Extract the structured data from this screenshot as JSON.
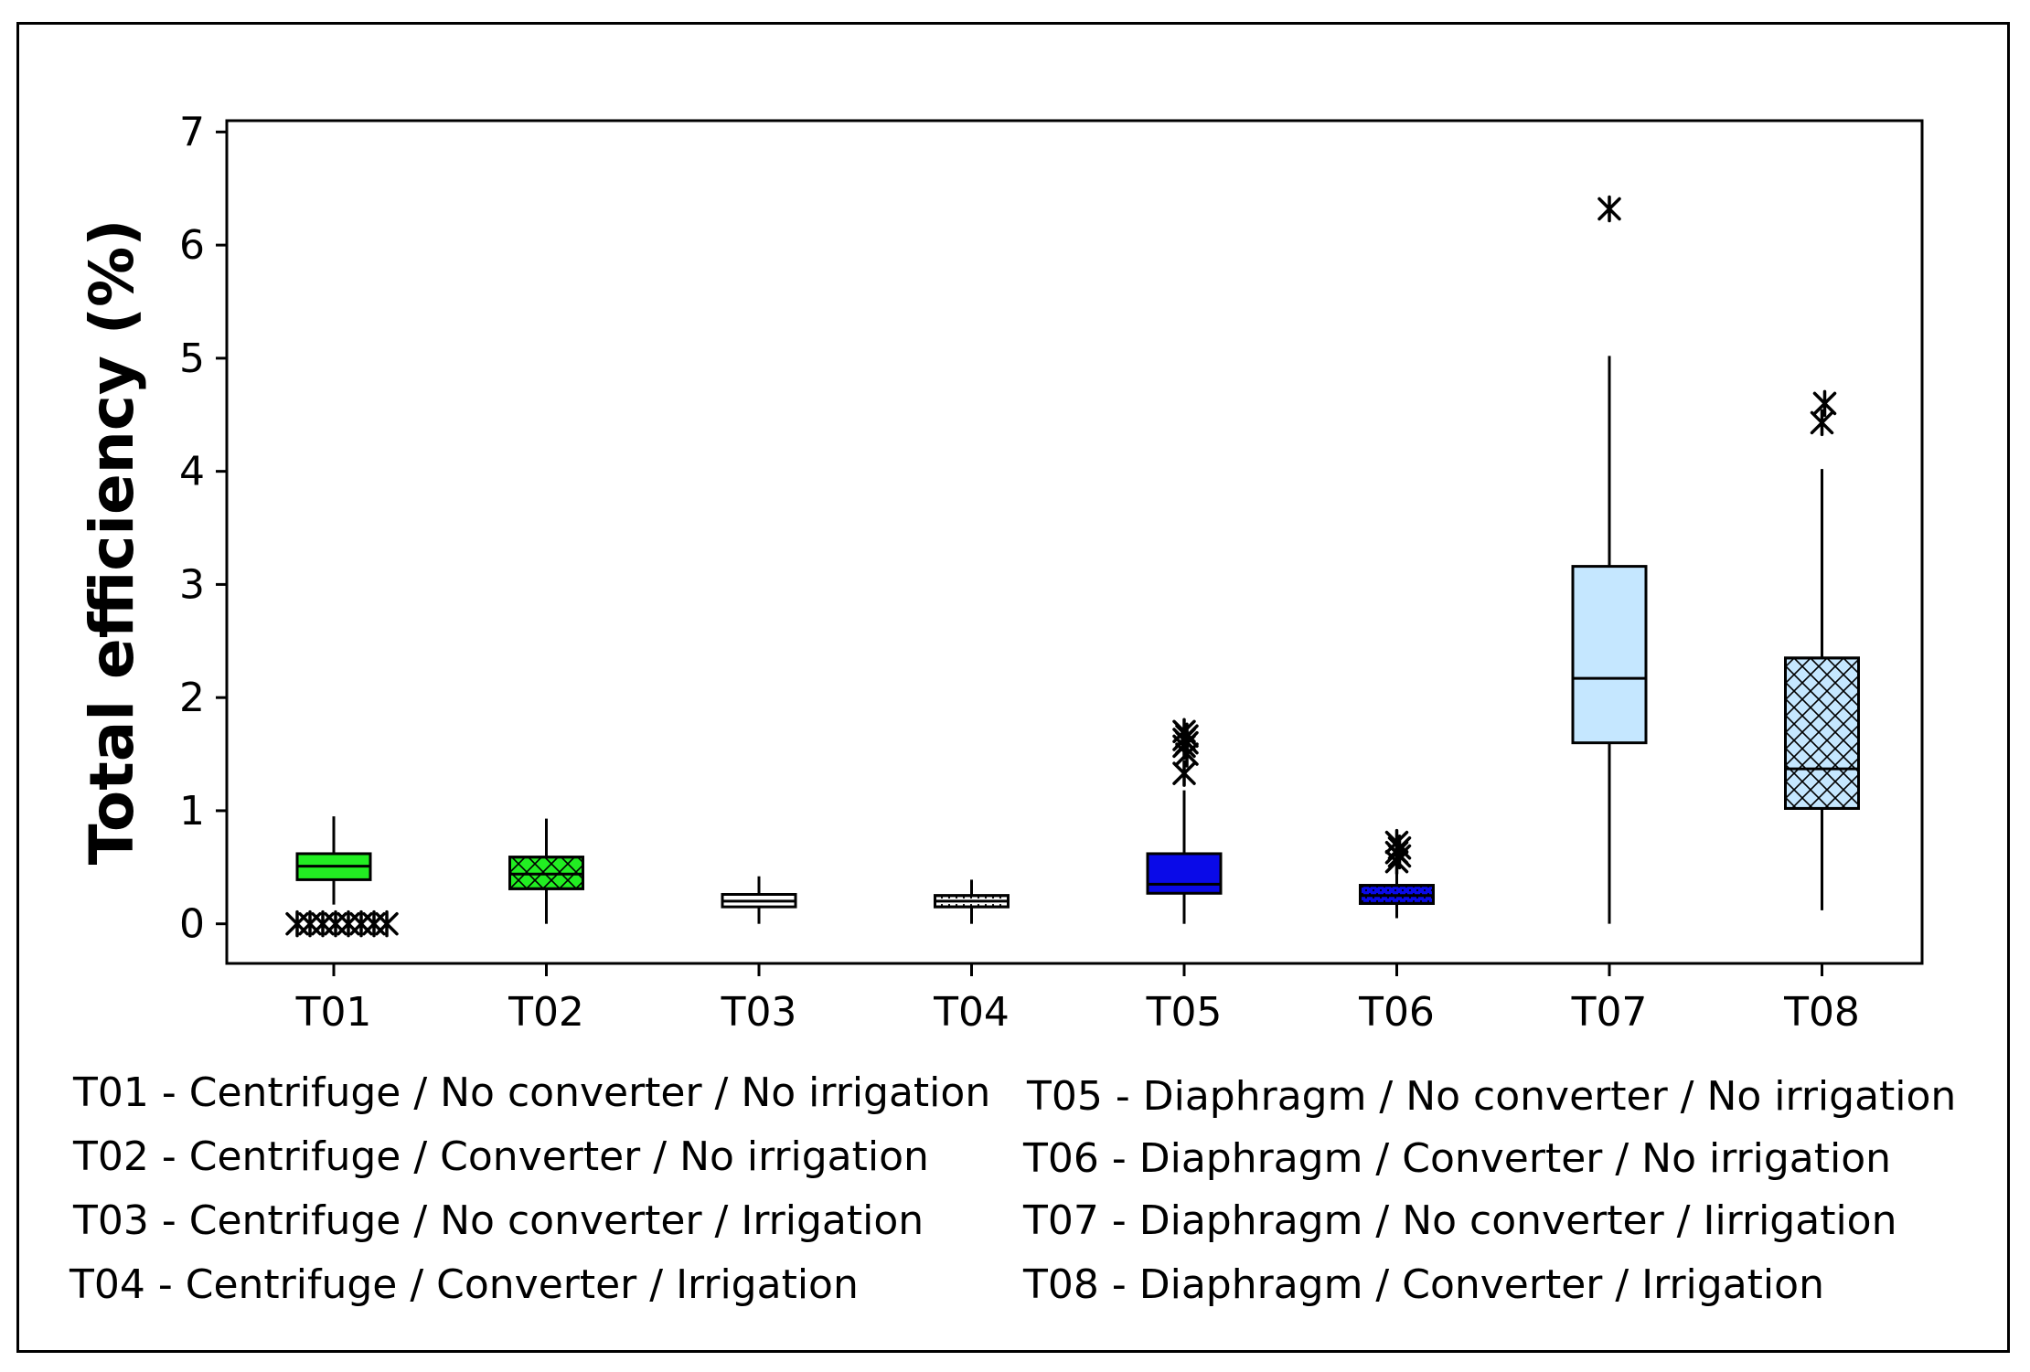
{
  "chart_data": {
    "type": "boxplot",
    "title": "",
    "xlabel": "",
    "ylabel": "Total efficiency (%)",
    "ylim": [
      -0.35,
      7.1
    ],
    "yticks": [
      0,
      1,
      2,
      3,
      4,
      5,
      6,
      7
    ],
    "categories": [
      "T01",
      "T02",
      "T03",
      "T04",
      "T05",
      "T06",
      "T07",
      "T08"
    ],
    "boxes": [
      {
        "name": "T01",
        "whisker_low": 0.17,
        "q1": 0.39,
        "median": 0.51,
        "q3": 0.62,
        "whisker_high": 0.95,
        "outliers": [
          0,
          0,
          0,
          0,
          0,
          0,
          0,
          0
        ],
        "fill": "#22ee22",
        "pattern": "none"
      },
      {
        "name": "T02",
        "whisker_low": 0.0,
        "q1": 0.31,
        "median": 0.44,
        "q3": 0.59,
        "whisker_high": 0.93,
        "outliers": [],
        "fill": "#22ee22",
        "pattern": "crosshatch"
      },
      {
        "name": "T03",
        "whisker_low": 0.0,
        "q1": 0.15,
        "median": 0.2,
        "q3": 0.26,
        "whisker_high": 0.42,
        "outliers": [],
        "fill": "#ffffff",
        "pattern": "none"
      },
      {
        "name": "T04",
        "whisker_low": 0.0,
        "q1": 0.15,
        "median": 0.2,
        "q3": 0.25,
        "whisker_high": 0.39,
        "outliers": [],
        "fill": "#ffffff",
        "pattern": "dots"
      },
      {
        "name": "T05",
        "whisker_low": 0.0,
        "q1": 0.27,
        "median": 0.35,
        "q3": 0.62,
        "whisker_high": 1.18,
        "outliers": [
          1.33,
          1.5,
          1.57,
          1.6,
          1.63,
          1.66,
          1.7
        ],
        "fill": "#0a0ae8",
        "pattern": "none"
      },
      {
        "name": "T06",
        "whisker_low": 0.05,
        "q1": 0.18,
        "median": 0.25,
        "q3": 0.34,
        "whisker_high": 0.5,
        "outliers": [
          0.55,
          0.6,
          0.63,
          0.67,
          0.72
        ],
        "fill": "#0a0ae8",
        "pattern": "dots"
      },
      {
        "name": "T07",
        "whisker_low": 0.0,
        "q1": 1.6,
        "median": 2.17,
        "q3": 3.16,
        "whisker_high": 5.02,
        "outliers": [
          6.32
        ],
        "fill": "#c5e7ff",
        "pattern": "none"
      },
      {
        "name": "T08",
        "whisker_low": 0.12,
        "q1": 1.02,
        "median": 1.37,
        "q3": 2.35,
        "whisker_high": 4.02,
        "outliers": [
          4.43,
          4.6
        ],
        "fill": "#c5e7ff",
        "pattern": "crosshatch"
      }
    ],
    "legend": [
      "T01 - Centrifuge / No converter / No irrigation",
      "T02 - Centrifuge / Converter / No irrigation",
      "T03 - Centrifuge / No converter / Irrigation",
      "T04 - Centrifuge / Converter / Irrigation",
      "T05 - Diaphragm / No converter / No irrigation",
      "T06 - Diaphragm / Converter / No irrigation",
      "T07 - Diaphragm / No converter / Iirrigation",
      "T08 - Diaphragm / Converter / Irrigation"
    ]
  }
}
